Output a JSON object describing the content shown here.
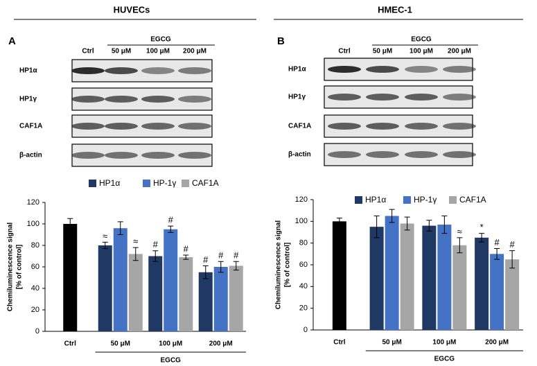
{
  "figure": {
    "panels": [
      {
        "title": "HUVECs",
        "label": "A",
        "treatment": "EGCG",
        "lanes": [
          "Ctrl",
          "50 μM",
          "100 μM",
          "200 μM"
        ],
        "rows": [
          "HP1α",
          "HP1γ",
          "CAF1A",
          "β-actin"
        ]
      },
      {
        "title": "HMEC-1",
        "label": "B",
        "treatment": "EGCG",
        "lanes": [
          "Ctrl",
          "50 μM",
          "100 μM",
          "200 μM"
        ],
        "rows": [
          "HP1α",
          "HP1γ",
          "CAF1A",
          "β-actin"
        ]
      }
    ]
  },
  "chart_data": [
    {
      "type": "bar",
      "ylabel": [
        "Chemiluminescence signal",
        "[% of control]"
      ],
      "categories": [
        "Ctrl",
        "50 μM",
        "100 μM",
        "200 μM"
      ],
      "group_label": "EGCG",
      "control": {
        "value": 100,
        "error": 5,
        "color": "#000000"
      },
      "series": [
        {
          "name": "HP1α",
          "color": "#1f3864",
          "values": [
            null,
            80,
            70,
            55
          ],
          "errors": [
            null,
            3,
            5,
            6
          ],
          "annotations": [
            null,
            "≈",
            "#",
            "#"
          ]
        },
        {
          "name": "HP-1γ",
          "color": "#4472c4",
          "values": [
            null,
            96,
            95,
            60
          ],
          "errors": [
            null,
            6,
            3,
            5
          ],
          "annotations": [
            null,
            null,
            "#",
            "#"
          ]
        },
        {
          "name": "CAF1A",
          "color": "#a6a6a6",
          "values": [
            null,
            72,
            69,
            61
          ],
          "errors": [
            null,
            6,
            2,
            4
          ],
          "annotations": [
            null,
            "≈",
            "#",
            "#"
          ]
        }
      ],
      "ylim": [
        0,
        120
      ],
      "yticks": [
        0,
        20,
        40,
        60,
        80,
        100,
        120
      ]
    },
    {
      "type": "bar",
      "ylabel": [
        "Chemiluminescence signal",
        "[% of control]"
      ],
      "categories": [
        "Ctrl",
        "50 μM",
        "100 μM",
        "200 μM"
      ],
      "group_label": "EGCG",
      "control": {
        "value": 100,
        "error": 3,
        "color": "#000000"
      },
      "series": [
        {
          "name": "HP1α",
          "color": "#1f3864",
          "values": [
            null,
            95,
            96,
            85
          ],
          "errors": [
            null,
            10,
            5,
            4
          ],
          "annotations": [
            null,
            null,
            null,
            "*"
          ]
        },
        {
          "name": "HP-1γ",
          "color": "#4472c4",
          "values": [
            null,
            105,
            97,
            70
          ],
          "errors": [
            null,
            6,
            8,
            5
          ],
          "annotations": [
            null,
            null,
            null,
            "#"
          ]
        },
        {
          "name": "CAF1A",
          "color": "#a6a6a6",
          "values": [
            null,
            98,
            78,
            65
          ],
          "errors": [
            null,
            6,
            7,
            8
          ],
          "annotations": [
            null,
            null,
            "≈",
            "#"
          ]
        }
      ],
      "ylim": [
        0,
        120
      ],
      "yticks": [
        0,
        20,
        40,
        60,
        80,
        100,
        120
      ]
    }
  ]
}
